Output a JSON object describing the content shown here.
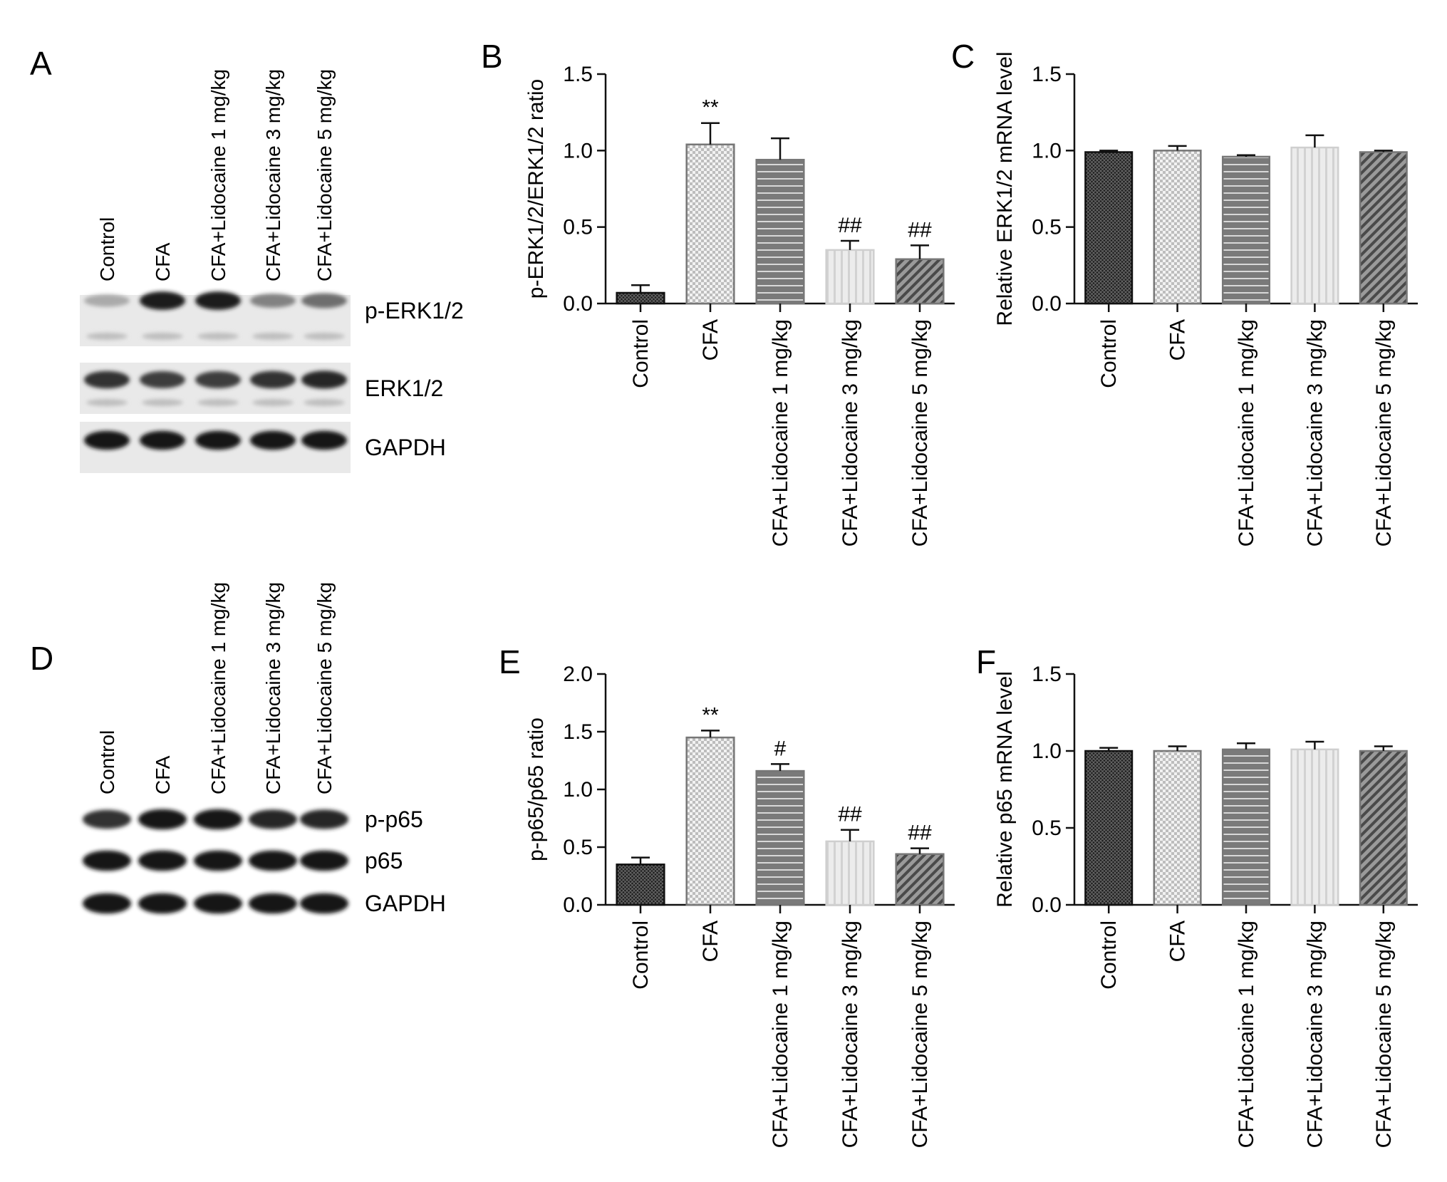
{
  "figure": {
    "panels": [
      {
        "letter": "A",
        "kind": "western-blot",
        "lanes": [
          "Control",
          "CFA",
          "CFA+Lidocaine 1 mg/kg",
          "CFA+Lidocaine 3 mg/kg",
          "CFA+Lidocaine 5 mg/kg"
        ],
        "bands": [
          "p-ERK1/2",
          "ERK1/2",
          "GAPDH"
        ],
        "band_darkness": [
          [
            0.25,
            0.95,
            0.95,
            0.45,
            0.55
          ],
          [
            0.85,
            0.8,
            0.8,
            0.85,
            0.9
          ],
          [
            1.0,
            1.0,
            1.0,
            1.0,
            1.0
          ]
        ]
      },
      {
        "letter": "D",
        "kind": "western-blot",
        "lanes": [
          "Control",
          "CFA",
          "CFA+Lidocaine 1 mg/kg",
          "CFA+Lidocaine 3 mg/kg",
          "CFA+Lidocaine 5 mg/kg"
        ],
        "bands": [
          "p-p65",
          "p65",
          "GAPDH"
        ],
        "band_darkness": [
          [
            0.85,
            1.0,
            1.0,
            0.9,
            0.9
          ],
          [
            1.0,
            1.0,
            1.0,
            1.0,
            1.0
          ],
          [
            1.0,
            1.0,
            1.0,
            1.0,
            1.0
          ]
        ]
      }
    ]
  },
  "chart_data": [
    {
      "panel": "B",
      "type": "bar",
      "ylabel": "p-ERK1/2/ERK1/2 ratio",
      "categories": [
        "Control",
        "CFA",
        "CFA+Lidocaine 1 mg/kg",
        "CFA+Lidocaine 3 mg/kg",
        "CFA+Lidocaine 5 mg/kg"
      ],
      "values": [
        0.07,
        1.04,
        0.94,
        0.35,
        0.29
      ],
      "errors": [
        0.05,
        0.14,
        0.14,
        0.06,
        0.09
      ],
      "annotations": [
        "",
        "**",
        "",
        "##",
        "##"
      ],
      "ylim": [
        0,
        1.5
      ],
      "yticks": [
        "0.0",
        "0.5",
        "1.0",
        "1.5"
      ]
    },
    {
      "panel": "C",
      "type": "bar",
      "ylabel": "Relative ERK1/2 mRNA level",
      "categories": [
        "Control",
        "CFA",
        "CFA+Lidocaine 1 mg/kg",
        "CFA+Lidocaine 3 mg/kg",
        "CFA+Lidocaine 5 mg/kg"
      ],
      "values": [
        0.99,
        1.0,
        0.96,
        1.02,
        0.99
      ],
      "errors": [
        0.01,
        0.03,
        0.01,
        0.08,
        0.01
      ],
      "annotations": [
        "",
        "",
        "",
        "",
        ""
      ],
      "ylim": [
        0,
        1.5
      ],
      "yticks": [
        "0.0",
        "0.5",
        "1.0",
        "1.5"
      ]
    },
    {
      "panel": "E",
      "type": "bar",
      "ylabel": "p-p65/p65 ratio",
      "categories": [
        "Control",
        "CFA",
        "CFA+Lidocaine 1 mg/kg",
        "CFA+Lidocaine 3 mg/kg",
        "CFA+Lidocaine 5 mg/kg"
      ],
      "values": [
        0.35,
        1.45,
        1.16,
        0.55,
        0.44
      ],
      "errors": [
        0.06,
        0.06,
        0.06,
        0.1,
        0.05
      ],
      "annotations": [
        "",
        "**",
        "#",
        "##",
        "##"
      ],
      "ylim": [
        0,
        2.0
      ],
      "yticks": [
        "0.0",
        "0.5",
        "1.0",
        "1.5",
        "2.0"
      ]
    },
    {
      "panel": "F",
      "type": "bar",
      "ylabel": "Relative p65 mRNA level",
      "categories": [
        "Control",
        "CFA",
        "CFA+Lidocaine 1 mg/kg",
        "CFA+Lidocaine 3 mg/kg",
        "CFA+Lidocaine 5 mg/kg"
      ],
      "values": [
        1.0,
        1.0,
        1.01,
        1.01,
        1.0
      ],
      "errors": [
        0.02,
        0.03,
        0.04,
        0.05,
        0.03
      ],
      "annotations": [
        "",
        "",
        "",
        "",
        ""
      ],
      "ylim": [
        0,
        1.5
      ],
      "yticks": [
        "0.0",
        "0.5",
        "1.0",
        "1.5"
      ]
    }
  ],
  "style": {
    "bar_fill": [
      "#2e2e2e",
      "#c8c8c8",
      "#6e6e6e",
      "#e2e2e2",
      "#5a5a5a"
    ],
    "bar_patterns": [
      "crosshatch-dense",
      "checker-light",
      "horizontal-lines",
      "vertical-lines-light",
      "diagonal-lines"
    ]
  }
}
